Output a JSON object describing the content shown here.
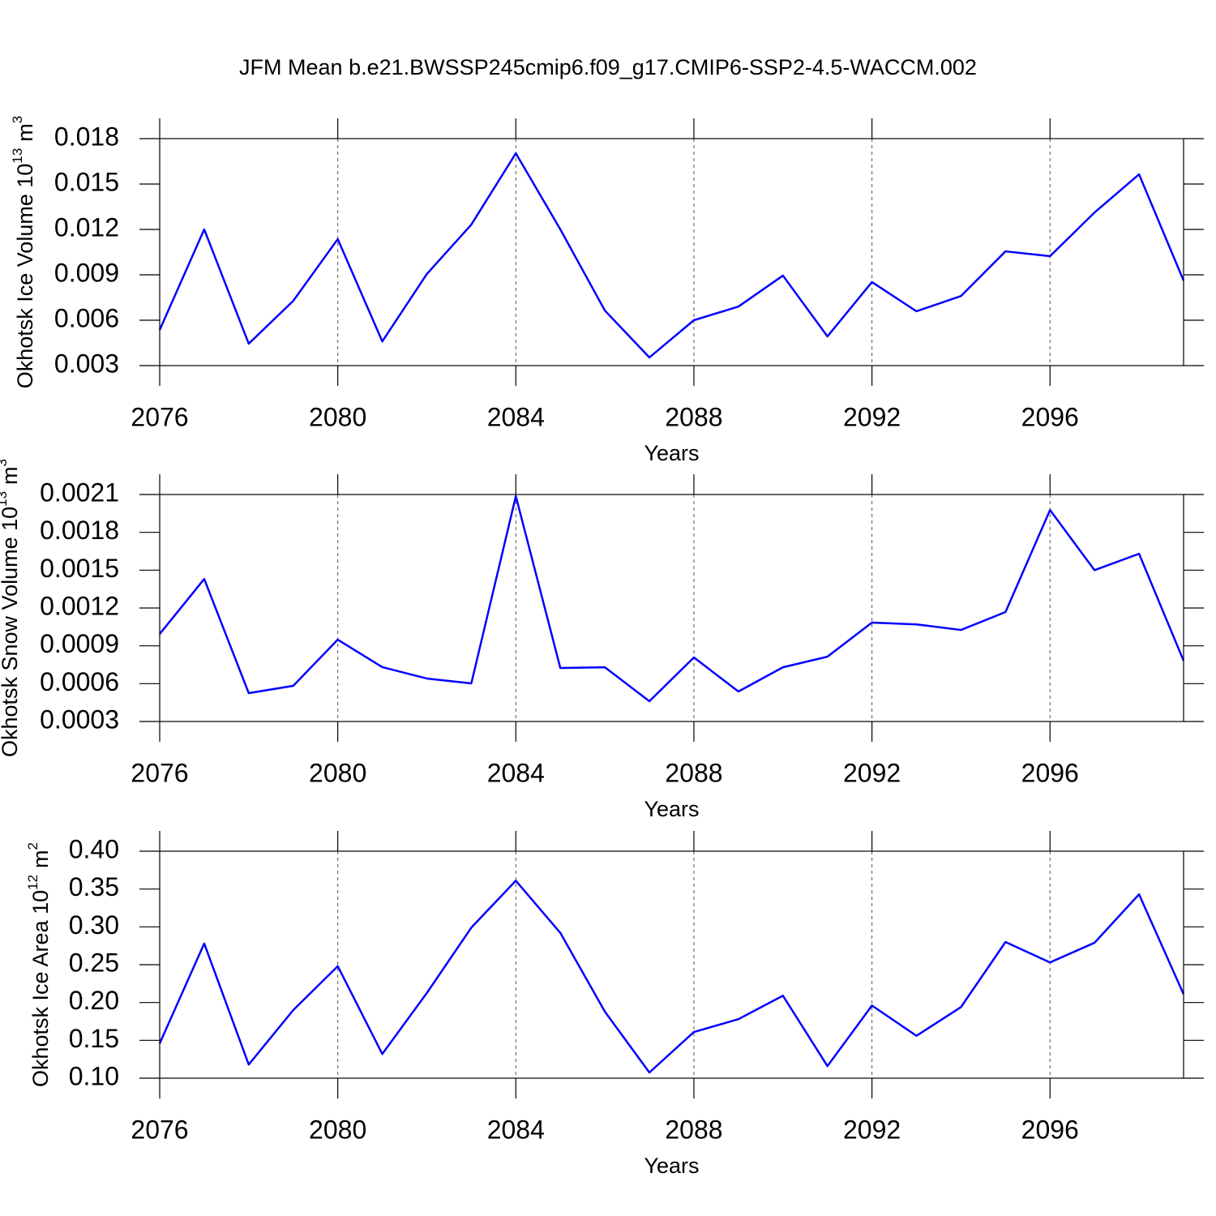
{
  "title": "JFM Mean b.e21.BWSSP245cmip6.f09_g17.CMIP6-SSP2-4.5-WACCM.002",
  "chart_data": [
    {
      "type": "line",
      "xlabel": "Years",
      "ylabel": "Okhotsk Ice Volume 10",
      "ylabel_exponent": "13",
      "ylabel_unit": "m",
      "ylabel_unit_exponent": "3",
      "x": [
        2076,
        2077,
        2078,
        2079,
        2080,
        2081,
        2082,
        2083,
        2084,
        2085,
        2086,
        2087,
        2088,
        2089,
        2090,
        2091,
        2092,
        2093,
        2094,
        2095,
        2096,
        2097,
        2098,
        2099
      ],
      "series": [
        {
          "color": "#0000ff",
          "values": [
            0.00536,
            0.012,
            0.00445,
            0.00728,
            0.01136,
            0.0046,
            0.00905,
            0.01232,
            0.01703,
            0.012,
            0.00664,
            0.00354,
            0.006,
            0.0069,
            0.00895,
            0.00493,
            0.00852,
            0.00659,
            0.0076,
            0.01055,
            0.01023,
            0.01312,
            0.01564,
            0.00862
          ]
        }
      ],
      "xlim": [
        2076,
        2099
      ],
      "xticks": [
        2076,
        2080,
        2084,
        2088,
        2092,
        2096
      ],
      "ylim": [
        0.003,
        0.018
      ],
      "yticks": [
        0.003,
        0.006,
        0.009,
        0.012,
        0.015,
        0.018
      ],
      "xgrid": true
    },
    {
      "type": "line",
      "xlabel": "Years",
      "ylabel": "Okhotsk Snow Volume 10",
      "ylabel_exponent": "13",
      "ylabel_unit": "m",
      "ylabel_unit_exponent": "3",
      "x": [
        2076,
        2077,
        2078,
        2079,
        2080,
        2081,
        2082,
        2083,
        2084,
        2085,
        2086,
        2087,
        2088,
        2089,
        2090,
        2091,
        2092,
        2093,
        2094,
        2095,
        2096,
        2097,
        2098,
        2099
      ],
      "series": [
        {
          "color": "#0000ff",
          "values": [
            0.000994,
            0.00143,
            0.000525,
            0.000583,
            0.000949,
            0.000731,
            0.000641,
            0.000602,
            0.002087,
            0.000724,
            0.00073,
            0.000461,
            0.000808,
            0.000538,
            0.00073,
            0.000814,
            0.001084,
            0.00107,
            0.001026,
            0.001168,
            0.001977,
            0.0015,
            0.00163,
            0.000782
          ]
        }
      ],
      "xlim": [
        2076,
        2099
      ],
      "xticks": [
        2076,
        2080,
        2084,
        2088,
        2092,
        2096
      ],
      "ylim": [
        0.0003,
        0.0021
      ],
      "yticks": [
        0.0003,
        0.0006,
        0.0009,
        0.0012,
        0.0015,
        0.0018,
        0.0021
      ],
      "xgrid": true
    },
    {
      "type": "line",
      "xlabel": "Years",
      "ylabel": "Okhotsk Ice Area 10",
      "ylabel_exponent": "12",
      "ylabel_unit": "m",
      "ylabel_unit_exponent": "2",
      "x": [
        2076,
        2077,
        2078,
        2079,
        2080,
        2081,
        2082,
        2083,
        2084,
        2085,
        2086,
        2087,
        2088,
        2089,
        2090,
        2091,
        2092,
        2093,
        2094,
        2095,
        2096,
        2097,
        2098,
        2099
      ],
      "series": [
        {
          "color": "#0000ff",
          "values": [
            0.146,
            0.278,
            0.118,
            0.19,
            0.248,
            0.132,
            0.2125,
            0.299,
            0.361,
            0.292,
            0.188,
            0.1075,
            0.161,
            0.178,
            0.209,
            0.116,
            0.196,
            0.156,
            0.194,
            0.28,
            0.253,
            0.279,
            0.343,
            0.211
          ]
        }
      ],
      "xlim": [
        2076,
        2099
      ],
      "xticks": [
        2076,
        2080,
        2084,
        2088,
        2092,
        2096
      ],
      "ylim": [
        0.1,
        0.4
      ],
      "yticks": [
        {
          "value": 0.1,
          "label": "0.10"
        },
        0.15,
        {
          "value": 0.2,
          "label": "0.20"
        },
        0.25,
        {
          "value": 0.3,
          "label": "0.30"
        },
        0.35,
        {
          "value": 0.4,
          "label": "0.40"
        }
      ],
      "xgrid": true
    }
  ]
}
